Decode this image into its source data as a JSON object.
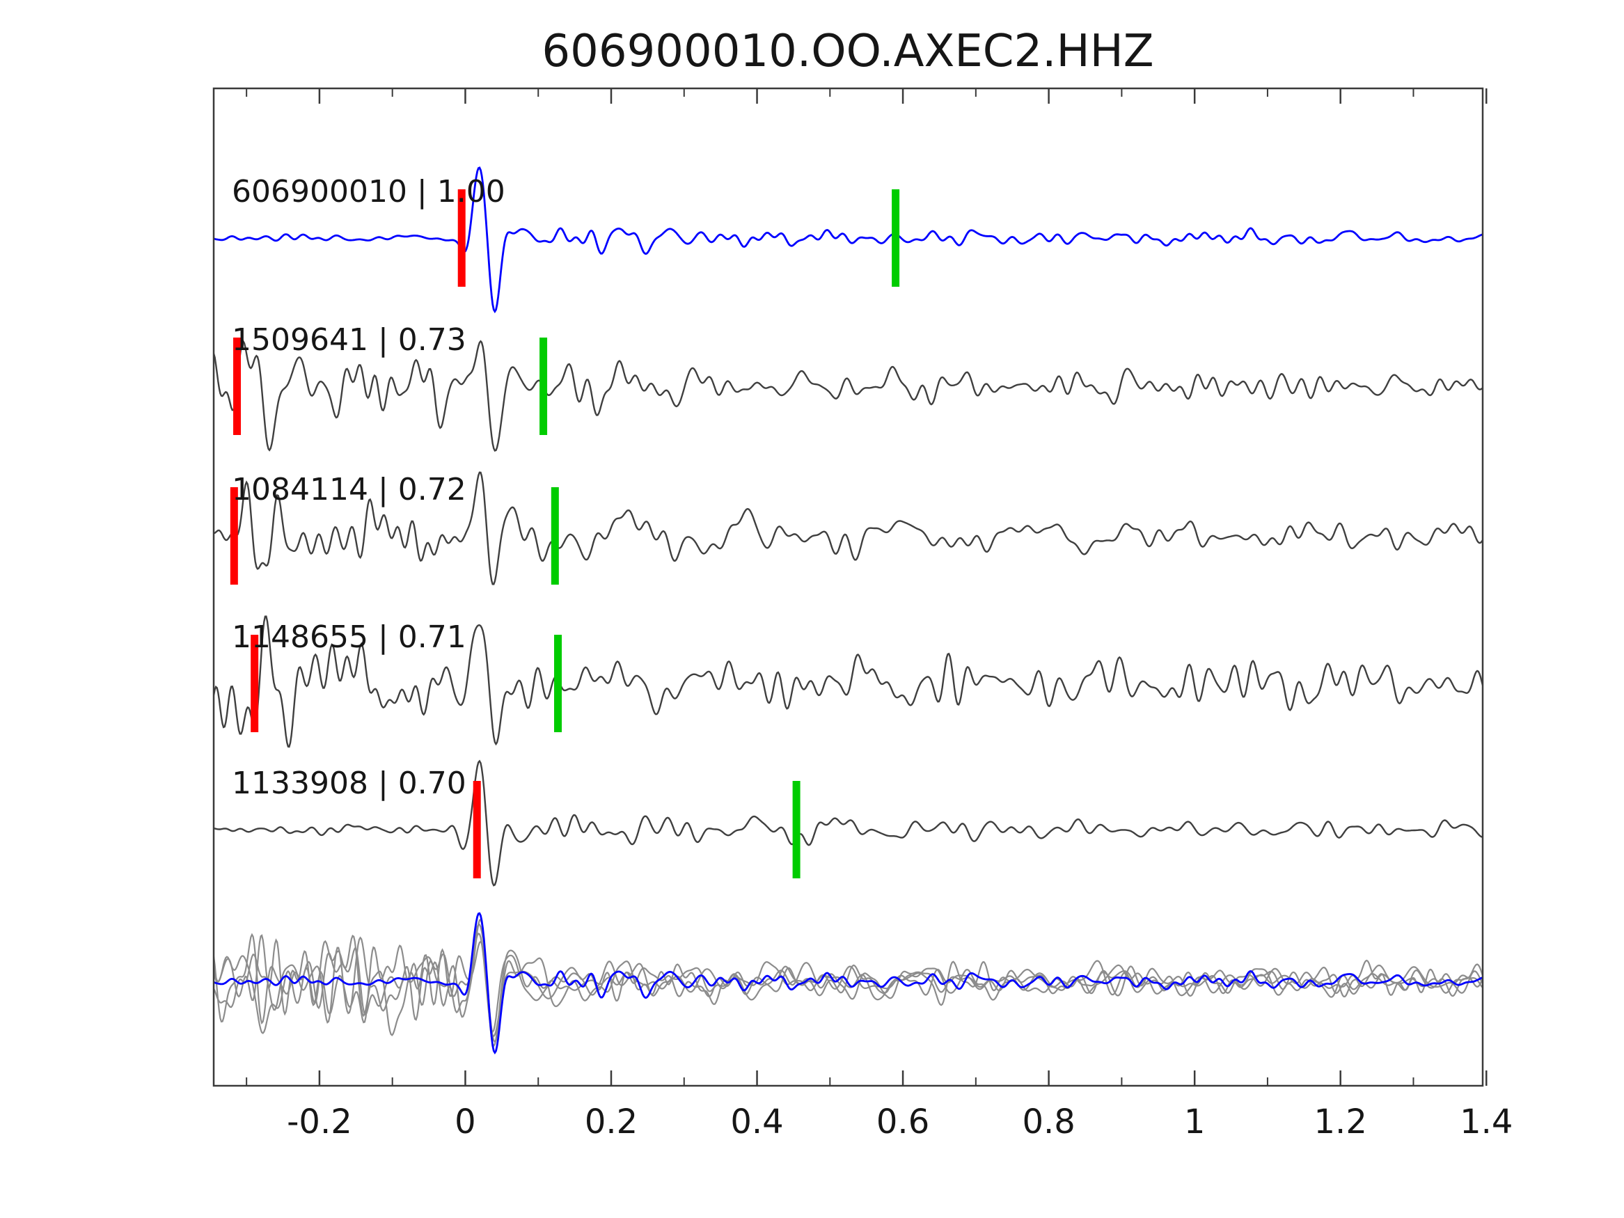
{
  "title": "606900010.OO.AXEC2.HHZ",
  "colors": {
    "reference_trace": "#0000ff",
    "candidate_trace": "#3f3f3f",
    "overlay_gray": "#8c8c8c",
    "pick_red": "#ff0000",
    "pick_green": "#00cc00",
    "axis": "#3a3a3a",
    "text": "#161616"
  },
  "axis": {
    "x_min": -0.345,
    "x_max": 1.395,
    "major_ticks": [
      {
        "v": -0.2,
        "label": "-0.2"
      },
      {
        "v": 0,
        "label": "0"
      },
      {
        "v": 0.2,
        "label": "0.2"
      },
      {
        "v": 0.4,
        "label": "0.4"
      },
      {
        "v": 0.6,
        "label": "0.6"
      },
      {
        "v": 0.8,
        "label": "0.8"
      },
      {
        "v": 1,
        "label": "1"
      },
      {
        "v": 1.2,
        "label": "1.2"
      },
      {
        "v": 1.4,
        "label": "1.4"
      }
    ],
    "minor_tick_step": 0.1
  },
  "chart_data": {
    "type": "line",
    "title": "606900010.OO.AXEC2.HHZ",
    "xlabel": "",
    "ylabel": "",
    "x_range": [
      -0.345,
      1.395
    ],
    "x_ticks": [
      -0.2,
      0,
      0.2,
      0.4,
      0.6,
      0.8,
      1,
      1.2,
      1.4
    ],
    "grid": false,
    "legend": false,
    "description": "Stack of 5 aligned seismic waveform traces with red and green pick markers, plus bottom overlay of all traces (gray) with reference trace highlighted in blue.",
    "traces": [
      {
        "id": "606900010",
        "correlation": 1.0,
        "label": "606900010 | 1.00",
        "color": "#0000ff",
        "red_pick": -0.005,
        "green_pick": 0.59,
        "onset": 0,
        "synth": {
          "seed": 11,
          "pre": 0.07,
          "spike": 1.05,
          "coda": 0.28,
          "tail": 0.11,
          "prepulse": 0,
          "prepulse_t": 0
        }
      },
      {
        "id": "1509641",
        "correlation": 0.73,
        "label": "1509641 | 0.73",
        "color": "#3f3f3f",
        "red_pick": -0.313,
        "green_pick": 0.107,
        "onset": 0,
        "synth": {
          "seed": 22,
          "pre": 0.7,
          "spike": 1.0,
          "coda": 0.5,
          "tail": 0.24,
          "prepulse": 0.85,
          "prepulse_t": -0.313
        }
      },
      {
        "id": "1084114",
        "correlation": 0.72,
        "label": "1084114 | 0.72",
        "color": "#3f3f3f",
        "red_pick": -0.317,
        "green_pick": 0.123,
        "onset": 0,
        "synth": {
          "seed": 33,
          "pre": 0.75,
          "spike": 1.0,
          "coda": 0.52,
          "tail": 0.26,
          "prepulse": 0.8,
          "prepulse_t": -0.317
        }
      },
      {
        "id": "1148655",
        "correlation": 0.71,
        "label": "1148655 | 0.71",
        "color": "#3f3f3f",
        "red_pick": -0.289,
        "green_pick": 0.127,
        "onset": 0,
        "synth": {
          "seed": 44,
          "pre": 0.85,
          "spike": 1.0,
          "coda": 0.55,
          "tail": 0.35,
          "prepulse": 0.85,
          "prepulse_t": -0.289
        }
      },
      {
        "id": "1133908",
        "correlation": 0.7,
        "label": "1133908 | 0.70",
        "color": "#3f3f3f",
        "red_pick": 0.016,
        "green_pick": 0.454,
        "onset": 0,
        "synth": {
          "seed": 55,
          "pre": 0.12,
          "spike": 0.95,
          "coda": 0.35,
          "tail": 0.17,
          "prepulse": 0,
          "prepulse_t": 0
        }
      }
    ],
    "overlay": {
      "gray_count": 4,
      "gray_color": "#8c8c8c",
      "highlight_color": "#0000ff",
      "gray_synth": {
        "pre": 0.95,
        "spike": 0.95,
        "coda": 0.55,
        "tail": 0.3,
        "prepulse": 0,
        "prepulse_t": 0
      },
      "highlight_synth": {
        "seed": 11,
        "pre": 0.1,
        "spike": 1.05,
        "coda": 0.3,
        "tail": 0.12,
        "prepulse": 0,
        "prepulse_t": 0
      }
    }
  }
}
